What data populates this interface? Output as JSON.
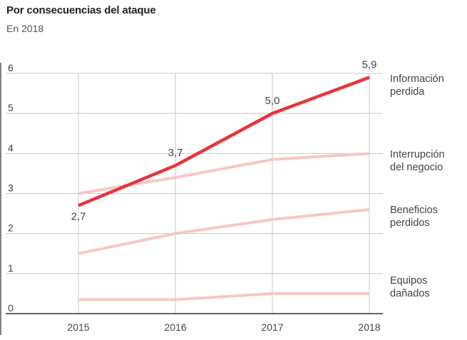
{
  "header": {
    "title": "Por consecuencias del ataque",
    "subtitle": "En 2018"
  },
  "chart_data": {
    "type": "line",
    "title": "Por consecuencias del ataque",
    "subtitle": "En 2018",
    "x": [
      "2015",
      "2016",
      "2017",
      "2018"
    ],
    "ylim": [
      0,
      6
    ],
    "yticks": [
      0,
      1,
      2,
      3,
      4,
      5,
      6
    ],
    "grid": true,
    "legend_placement": "right (labels at line ends)",
    "series": [
      {
        "name": "Información perdida",
        "name_lines": [
          "Información",
          "perdida"
        ],
        "values": [
          2.7,
          3.7,
          5.0,
          5.9
        ],
        "data_labels": [
          "2,7",
          "3,7",
          "5,0",
          "5,9"
        ],
        "color": "#e8343b",
        "highlight": true
      },
      {
        "name": "Interrupción del negocio",
        "name_lines": [
          "Interrupción",
          "del negocio"
        ],
        "values": [
          3.0,
          3.4,
          3.85,
          4.0
        ],
        "color": "#f8c6c6",
        "highlight": false
      },
      {
        "name": "Beneficios perdidos",
        "name_lines": [
          "Beneficios",
          "perdidos"
        ],
        "values": [
          1.5,
          2.0,
          2.35,
          2.6
        ],
        "color": "#f8c6c6",
        "highlight": false
      },
      {
        "name": "Equipos dañados",
        "name_lines": [
          "Equipos",
          "dañados"
        ],
        "values": [
          0.35,
          0.35,
          0.5,
          0.5
        ],
        "color": "#f8c6c6",
        "highlight": false
      }
    ]
  }
}
